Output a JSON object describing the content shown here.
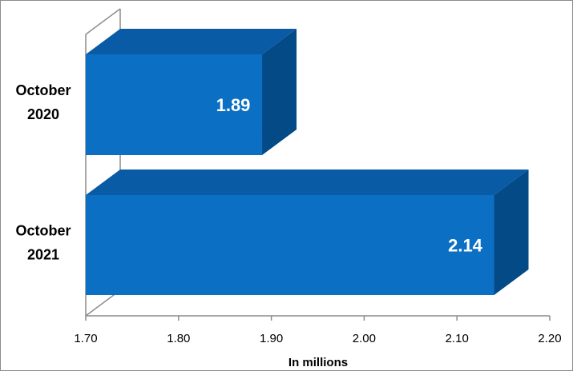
{
  "chart_data": {
    "type": "bar",
    "orientation": "horizontal",
    "style": "3d",
    "categories": [
      "October 2020",
      "October 2021"
    ],
    "category_lines": [
      [
        "October",
        "2020"
      ],
      [
        "October",
        "2021"
      ]
    ],
    "values": [
      1.89,
      2.14
    ],
    "data_labels": [
      "1.89",
      "2.14"
    ],
    "xlim": [
      1.7,
      2.2
    ],
    "xticks": [
      1.7,
      1.8,
      1.9,
      2.0,
      2.1,
      2.2
    ],
    "xtick_labels": [
      "1.70",
      "1.80",
      "1.90",
      "2.00",
      "2.10",
      "2.20"
    ],
    "xlabel": "In millions",
    "ylabel": "",
    "title": "",
    "legend": "none",
    "grid": false,
    "colors": {
      "bar_front": "#0B6FC4",
      "bar_top": "#0A5BA6",
      "bar_side": "#034A86",
      "axis": "#8C8C8C"
    }
  }
}
